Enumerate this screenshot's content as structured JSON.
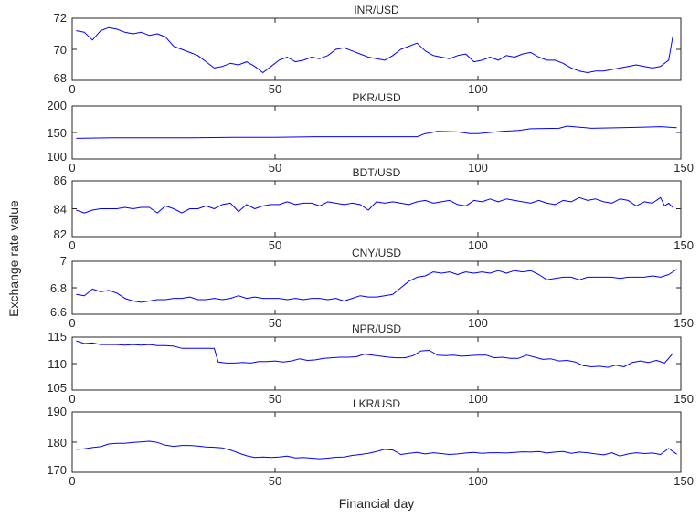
{
  "figure": {
    "xlabel": "Financial day",
    "ylabel": "Exchange rate value",
    "line_color": "#0000ff"
  },
  "chart_data": [
    {
      "type": "line",
      "title": "INR/USD",
      "xlim": [
        0,
        150
      ],
      "ylim": [
        68,
        72
      ],
      "xticks": [
        0,
        50,
        100
      ],
      "yticks": [
        68,
        70,
        72
      ],
      "series": [
        {
          "x": [
            1,
            3,
            5,
            7,
            9,
            11,
            13,
            15,
            17,
            19,
            21,
            23,
            25,
            27,
            29,
            31,
            33,
            35,
            37,
            39,
            41,
            43,
            45,
            47,
            49,
            51,
            53,
            55,
            57,
            59,
            61,
            63,
            65,
            67,
            69,
            71,
            73,
            75,
            77,
            79,
            81,
            83,
            85,
            87,
            89,
            91,
            93,
            95,
            97,
            99,
            101,
            103,
            105,
            107,
            109,
            111,
            113,
            115,
            117,
            119,
            121,
            123,
            125,
            127,
            129,
            131,
            133,
            135,
            137,
            139,
            141,
            143,
            145,
            147,
            148
          ],
          "y": [
            71.2,
            71.1,
            70.6,
            71.2,
            71.4,
            71.3,
            71.1,
            71.0,
            71.1,
            70.9,
            71.0,
            70.8,
            70.2,
            70.0,
            69.8,
            69.6,
            69.2,
            68.8,
            68.9,
            69.1,
            69.0,
            69.2,
            68.9,
            68.5,
            68.9,
            69.3,
            69.5,
            69.2,
            69.3,
            69.5,
            69.4,
            69.6,
            70.0,
            70.1,
            69.9,
            69.7,
            69.5,
            69.4,
            69.3,
            69.6,
            70.0,
            70.2,
            70.4,
            69.9,
            69.6,
            69.5,
            69.4,
            69.6,
            69.7,
            69.2,
            69.3,
            69.5,
            69.3,
            69.6,
            69.5,
            69.7,
            69.8,
            69.5,
            69.3,
            69.3,
            69.1,
            68.8,
            68.6,
            68.5,
            68.6,
            68.6,
            68.7,
            68.8,
            68.9,
            69.0,
            68.9,
            68.8,
            68.9,
            69.3,
            70.8
          ]
        }
      ]
    },
    {
      "type": "line",
      "title": "PKR/USD",
      "xlim": [
        0,
        150
      ],
      "ylim": [
        100,
        200
      ],
      "xticks": [
        0,
        50,
        100,
        150
      ],
      "yticks": [
        100,
        150,
        200
      ],
      "series": [
        {
          "x": [
            1,
            10,
            20,
            30,
            40,
            50,
            60,
            70,
            80,
            85,
            87,
            88,
            90,
            95,
            98,
            100,
            103,
            106,
            110,
            113,
            120,
            122,
            125,
            128,
            135,
            140,
            145,
            149
          ],
          "y": [
            139,
            140,
            140,
            140,
            141,
            141,
            142,
            142,
            142,
            142,
            148,
            149,
            152,
            151,
            148,
            148,
            150,
            152,
            154,
            157,
            158,
            162,
            160,
            158,
            159,
            160,
            161,
            159
          ]
        }
      ]
    },
    {
      "type": "line",
      "title": "BDT/USD",
      "xlim": [
        0,
        150
      ],
      "ylim": [
        82,
        86
      ],
      "xticks": [
        0,
        50,
        100,
        150
      ],
      "yticks": [
        82,
        84,
        86
      ],
      "series": [
        {
          "x": [
            1,
            3,
            5,
            7,
            9,
            11,
            13,
            15,
            17,
            19,
            21,
            23,
            25,
            27,
            29,
            31,
            33,
            35,
            37,
            39,
            41,
            43,
            45,
            47,
            49,
            51,
            53,
            55,
            57,
            59,
            61,
            63,
            65,
            67,
            69,
            71,
            73,
            75,
            77,
            79,
            81,
            83,
            85,
            87,
            89,
            91,
            93,
            95,
            97,
            99,
            101,
            103,
            105,
            107,
            109,
            111,
            113,
            115,
            117,
            119,
            121,
            123,
            125,
            127,
            129,
            131,
            133,
            135,
            137,
            139,
            141,
            143,
            145,
            146,
            147,
            148
          ],
          "y": [
            83.9,
            83.7,
            83.9,
            84.0,
            84.0,
            84.0,
            84.1,
            84.0,
            84.1,
            84.1,
            83.7,
            84.2,
            84.0,
            83.7,
            84.0,
            84.0,
            84.2,
            84.0,
            84.3,
            84.4,
            83.8,
            84.3,
            84.0,
            84.2,
            84.3,
            84.3,
            84.5,
            84.3,
            84.4,
            84.4,
            84.2,
            84.5,
            84.4,
            84.3,
            84.4,
            84.3,
            83.9,
            84.5,
            84.4,
            84.5,
            84.4,
            84.3,
            84.5,
            84.6,
            84.4,
            84.5,
            84.6,
            84.3,
            84.2,
            84.6,
            84.5,
            84.7,
            84.5,
            84.7,
            84.6,
            84.5,
            84.4,
            84.6,
            84.4,
            84.3,
            84.6,
            84.5,
            84.8,
            84.6,
            84.7,
            84.5,
            84.4,
            84.7,
            84.6,
            84.2,
            84.5,
            84.4,
            84.8,
            84.2,
            84.4,
            84.1
          ]
        }
      ]
    },
    {
      "type": "line",
      "title": "CNY/USD",
      "xlim": [
        0,
        150
      ],
      "ylim": [
        6.6,
        7
      ],
      "xticks": [
        0,
        50,
        100,
        150
      ],
      "yticks": [
        6.6,
        6.8,
        7
      ],
      "series": [
        {
          "x": [
            1,
            3,
            5,
            7,
            9,
            11,
            13,
            15,
            17,
            19,
            21,
            23,
            25,
            27,
            29,
            31,
            33,
            35,
            37,
            39,
            41,
            43,
            45,
            47,
            49,
            51,
            53,
            55,
            57,
            59,
            61,
            63,
            65,
            67,
            69,
            71,
            73,
            75,
            77,
            79,
            81,
            83,
            85,
            87,
            89,
            91,
            93,
            95,
            97,
            99,
            101,
            103,
            105,
            107,
            109,
            111,
            113,
            115,
            117,
            119,
            121,
            123,
            125,
            127,
            129,
            131,
            133,
            135,
            137,
            139,
            141,
            143,
            145,
            147,
            149
          ],
          "y": [
            6.75,
            6.74,
            6.79,
            6.77,
            6.78,
            6.76,
            6.72,
            6.7,
            6.69,
            6.7,
            6.71,
            6.71,
            6.72,
            6.72,
            6.73,
            6.71,
            6.71,
            6.72,
            6.71,
            6.72,
            6.74,
            6.72,
            6.73,
            6.72,
            6.72,
            6.72,
            6.71,
            6.72,
            6.71,
            6.72,
            6.72,
            6.71,
            6.72,
            6.7,
            6.72,
            6.74,
            6.73,
            6.73,
            6.74,
            6.75,
            6.8,
            6.85,
            6.88,
            6.89,
            6.92,
            6.91,
            6.92,
            6.9,
            6.92,
            6.91,
            6.92,
            6.91,
            6.93,
            6.91,
            6.93,
            6.92,
            6.93,
            6.9,
            6.86,
            6.87,
            6.88,
            6.88,
            6.86,
            6.88,
            6.88,
            6.88,
            6.88,
            6.87,
            6.88,
            6.88,
            6.88,
            6.89,
            6.88,
            6.9,
            6.94
          ]
        }
      ]
    },
    {
      "type": "line",
      "title": "NPR/USD",
      "xlim": [
        0,
        150
      ],
      "ylim": [
        105,
        115
      ],
      "xticks": [
        0,
        50,
        100,
        150
      ],
      "yticks": [
        105,
        110,
        115
      ],
      "series": [
        {
          "x": [
            1,
            3,
            5,
            7,
            9,
            11,
            13,
            15,
            17,
            19,
            21,
            23,
            25,
            27,
            29,
            31,
            33,
            35,
            36,
            38,
            40,
            42,
            44,
            46,
            48,
            50,
            52,
            54,
            56,
            58,
            60,
            62,
            64,
            66,
            68,
            70,
            72,
            74,
            76,
            78,
            80,
            82,
            84,
            86,
            88,
            90,
            92,
            94,
            96,
            98,
            100,
            102,
            104,
            106,
            108,
            110,
            112,
            114,
            116,
            118,
            120,
            122,
            124,
            126,
            128,
            130,
            132,
            134,
            136,
            138,
            140,
            142,
            144,
            146,
            148
          ],
          "y": [
            114.3,
            113.8,
            113.9,
            113.6,
            113.6,
            113.6,
            113.5,
            113.6,
            113.5,
            113.6,
            113.4,
            113.4,
            113.3,
            112.9,
            112.9,
            112.9,
            112.9,
            112.9,
            110.3,
            110.1,
            110.1,
            110.2,
            110.1,
            110.4,
            110.4,
            110.5,
            110.3,
            110.5,
            110.9,
            110.6,
            110.7,
            111.0,
            111.1,
            111.2,
            111.2,
            111.3,
            111.8,
            111.6,
            111.4,
            111.2,
            111.1,
            111.1,
            111.5,
            112.4,
            112.5,
            111.6,
            111.5,
            111.6,
            111.4,
            111.5,
            111.6,
            111.6,
            111.1,
            111.2,
            111.0,
            111.0,
            111.6,
            111.2,
            110.8,
            110.9,
            110.5,
            110.6,
            110.3,
            109.6,
            109.4,
            109.5,
            109.3,
            109.7,
            109.4,
            110.2,
            110.5,
            110.2,
            110.6,
            110.1,
            111.9
          ]
        }
      ]
    },
    {
      "type": "line",
      "title": "LKR/USD",
      "xlim": [
        0,
        150
      ],
      "ylim": [
        170,
        190
      ],
      "xticks": [
        0,
        50,
        100,
        150
      ],
      "yticks": [
        170,
        180,
        190
      ],
      "series": [
        {
          "x": [
            1,
            3,
            5,
            7,
            9,
            11,
            13,
            15,
            17,
            19,
            21,
            23,
            25,
            27,
            29,
            31,
            33,
            35,
            37,
            39,
            41,
            43,
            45,
            47,
            49,
            51,
            53,
            55,
            57,
            59,
            61,
            63,
            65,
            67,
            69,
            71,
            73,
            75,
            77,
            79,
            81,
            83,
            85,
            87,
            89,
            91,
            93,
            95,
            97,
            99,
            101,
            103,
            105,
            107,
            109,
            111,
            113,
            115,
            117,
            119,
            121,
            123,
            125,
            127,
            129,
            131,
            133,
            135,
            137,
            139,
            141,
            143,
            145,
            147,
            149
          ],
          "y": [
            177.6,
            177.8,
            178.2,
            178.5,
            179.4,
            179.6,
            179.6,
            179.9,
            180.1,
            180.3,
            179.9,
            179.0,
            178.6,
            178.9,
            178.9,
            178.7,
            178.4,
            178.3,
            178.1,
            177.4,
            176.4,
            175.5,
            174.9,
            175.1,
            174.9,
            175.1,
            175.4,
            174.8,
            174.9,
            174.7,
            174.5,
            174.7,
            175.0,
            175.1,
            175.6,
            175.9,
            176.3,
            176.9,
            177.6,
            177.4,
            175.9,
            176.3,
            176.6,
            176.1,
            176.5,
            176.2,
            175.9,
            176.1,
            176.4,
            176.6,
            176.3,
            176.5,
            176.5,
            176.4,
            176.6,
            176.8,
            176.7,
            176.9,
            176.4,
            176.7,
            176.9,
            176.3,
            176.7,
            176.5,
            176.1,
            175.8,
            176.5,
            175.4,
            176.1,
            176.5,
            176.2,
            176.4,
            175.9,
            177.9,
            176.0
          ]
        }
      ]
    }
  ]
}
